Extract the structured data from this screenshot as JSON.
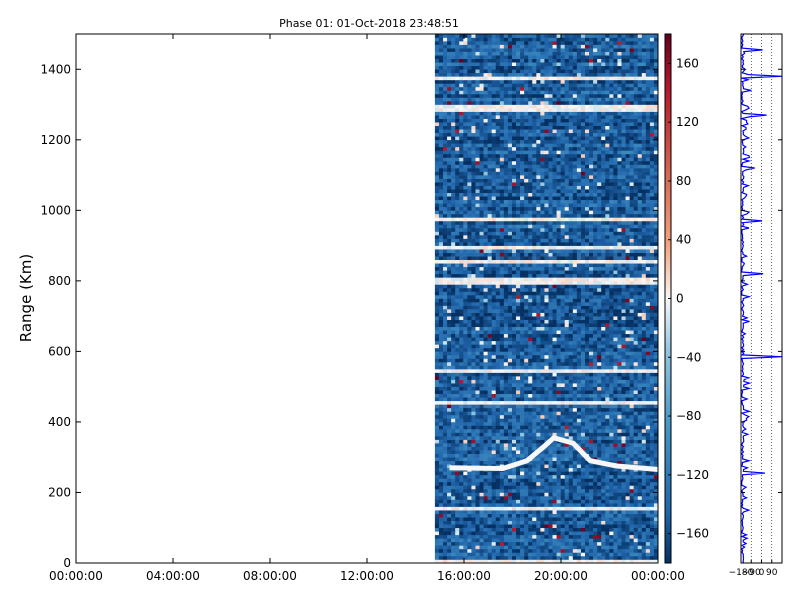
{
  "chart_data": [
    {
      "type": "heatmap",
      "title": "Phase 01: 01-Oct-2018 23:48:51",
      "ylabel": "Range (Km)",
      "xlabel": "",
      "x_ticks": [
        "00:00:00",
        "04:00:00",
        "08:00:00",
        "12:00:00",
        "16:00:00",
        "20:00:00",
        "00:00:00"
      ],
      "x_range_hours": [
        0,
        24
      ],
      "y_ticks": [
        0,
        200,
        400,
        600,
        800,
        1000,
        1200,
        1400
      ],
      "ylim": [
        0,
        1500
      ],
      "data_start_hour": 14.8,
      "data_end_hour": 24,
      "value_range": [
        -180,
        180
      ],
      "typical_value_range": [
        -180,
        -100
      ],
      "white_bands_km": [
        4,
        158,
        455,
        545,
        800,
        855,
        895,
        972,
        1290,
        1372
      ],
      "echo_layer_points": [
        [
          15.4,
          270
        ],
        [
          17.6,
          268
        ],
        [
          18.6,
          290
        ],
        [
          19.3,
          330
        ],
        [
          19.7,
          355
        ],
        [
          20.5,
          340
        ],
        [
          21.2,
          290
        ],
        [
          22.3,
          275
        ],
        [
          24,
          265
        ]
      ],
      "colormap": "RdBu_r",
      "colors": {
        "low": "#053061",
        "mid": "#f7f7f7",
        "high": "#67001f",
        "typical": "#3a78b5"
      }
    },
    {
      "type": "colorbar",
      "ticks": [
        160,
        120,
        80,
        40,
        0,
        -40,
        -80,
        -120,
        -160
      ],
      "range": [
        -180,
        180
      ]
    },
    {
      "type": "line",
      "x_ticks": [
        "−180",
        "−90",
        "0",
        "90"
      ],
      "xlim": [
        -180,
        180
      ],
      "ylim": [
        0,
        1500
      ],
      "y_tick_values": [
        0,
        200,
        400,
        600,
        800,
        1000,
        1200,
        1400
      ],
      "grid": "x dotted",
      "series_color": "#0000ff",
      "typical_value": -165,
      "spikes": [
        [
          1380,
          180
        ],
        [
          585,
          180
        ],
        [
          1270,
          45
        ],
        [
          1455,
          10
        ],
        [
          255,
          30
        ],
        [
          820,
          15
        ],
        [
          970,
          5
        ],
        [
          1120,
          -60
        ],
        [
          1340,
          -90
        ]
      ]
    }
  ]
}
